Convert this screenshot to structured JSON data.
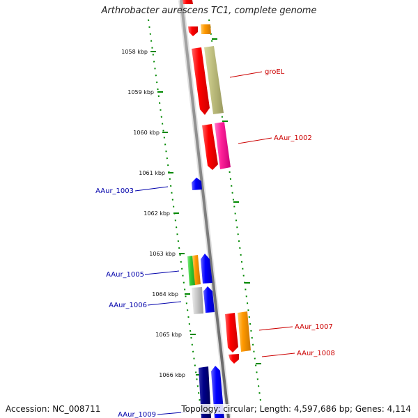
{
  "title": "Arthrobacter aurescens TC1, complete genome",
  "footer": {
    "accession": "Accession: NC_008711",
    "summary": "Topology: circular; Length: 4,597,686 bp; Genes: 4,114"
  },
  "ticks": [
    "1058 kbp",
    "1059 kbp",
    "1060 kbp",
    "1061 kbp",
    "1062 kbp",
    "1063 kbp",
    "1064 kbp",
    "1065 kbp",
    "1066 kbp"
  ],
  "labels": {
    "groEL": "groEL",
    "AAur_1002": "AAur_1002",
    "AAur_1003": "AAur_1003",
    "AAur_1005": "AAur_1005",
    "AAur_1006": "AAur_1006",
    "AAur_1007": "AAur_1007",
    "AAur_1008": "AAur_1008",
    "AAur_1009": "AAur_1009"
  },
  "colors": {
    "forward_label": "#cc0000",
    "reverse_label": "#0000aa",
    "tick_dots": "#008800",
    "backbone": "#888888"
  }
}
